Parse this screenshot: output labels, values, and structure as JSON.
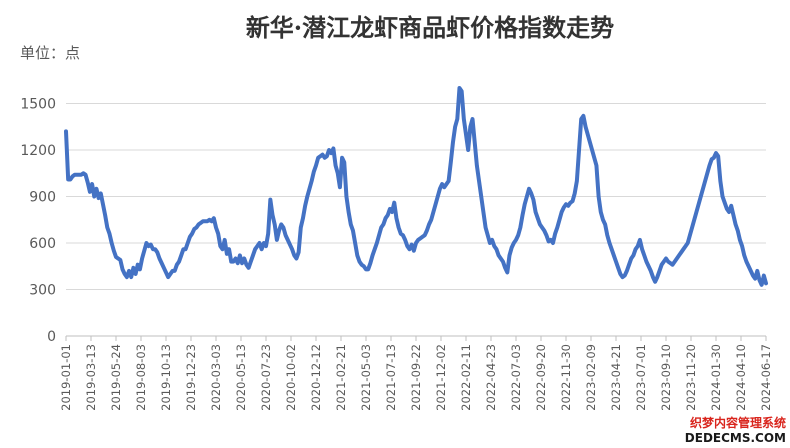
{
  "chart_data": {
    "type": "line",
    "title": "新华·潜江龙虾商品虾价格指数走势",
    "unit_label": "单位：点",
    "ylim": [
      0,
      1600
    ],
    "yticks": [
      "0",
      "300",
      "600",
      "900",
      "1200",
      "1500"
    ],
    "grid": true,
    "x_tick_labels": [
      "2019-01-01",
      "2019-03-13",
      "2019-05-24",
      "2019-08-03",
      "2019-10-13",
      "2019-12-23",
      "2020-03-03",
      "2020-05-13",
      "2020-07-23",
      "2020-10-02",
      "2020-12-12",
      "2021-02-21",
      "2021-05-03",
      "2021-07-13",
      "2021-09-22",
      "2021-12-02",
      "2022-02-11",
      "2022-04-23",
      "2022-07-03",
      "2022-09-20",
      "2022-11-30",
      "2023-02-09",
      "2023-04-21",
      "2023-07-01",
      "2023-09-10",
      "2023-11-20",
      "2024-01-30",
      "2024-04-10",
      "2024-06-17"
    ],
    "series": [
      {
        "color": "#4472c4",
        "values": [
          1320,
          1010,
          1010,
          1030,
          1040,
          1040,
          1040,
          1040,
          1050,
          1040,
          990,
          930,
          980,
          900,
          950,
          890,
          920,
          850,
          780,
          700,
          660,
          600,
          550,
          510,
          500,
          490,
          430,
          400,
          380,
          420,
          380,
          440,
          400,
          460,
          430,
          500,
          550,
          600,
          580,
          590,
          560,
          560,
          540,
          500,
          470,
          440,
          410,
          380,
          400,
          420,
          420,
          460,
          480,
          520,
          560,
          560,
          600,
          640,
          660,
          690,
          700,
          720,
          730,
          740,
          740,
          740,
          750,
          740,
          760,
          700,
          660,
          580,
          560,
          620,
          530,
          560,
          480,
          480,
          500,
          470,
          520,
          470,
          500,
          460,
          440,
          480,
          520,
          560,
          580,
          600,
          560,
          600,
          580,
          660,
          880,
          780,
          720,
          620,
          680,
          720,
          700,
          650,
          620,
          590,
          560,
          520,
          500,
          540,
          700,
          760,
          840,
          900,
          950,
          1000,
          1060,
          1100,
          1150,
          1160,
          1170,
          1150,
          1160,
          1200,
          1180,
          1210,
          1100,
          1050,
          960,
          1150,
          1120,
          900,
          800,
          720,
          680,
          600,
          520,
          480,
          460,
          450,
          430,
          430,
          470,
          520,
          560,
          600,
          650,
          700,
          720,
          760,
          780,
          820,
          800,
          860,
          760,
          700,
          660,
          650,
          620,
          580,
          560,
          590,
          550,
          600,
          620,
          630,
          640,
          650,
          680,
          720,
          750,
          800,
          850,
          900,
          950,
          980,
          960,
          980,
          1000,
          1120,
          1250,
          1350,
          1400,
          1600,
          1580,
          1400,
          1300,
          1200,
          1350,
          1400,
          1250,
          1100,
          1000,
          900,
          800,
          700,
          650,
          600,
          620,
          580,
          560,
          520,
          500,
          480,
          440,
          410,
          520,
          570,
          600,
          620,
          650,
          700,
          780,
          850,
          900,
          950,
          920,
          880,
          800,
          760,
          720,
          700,
          680,
          650,
          610,
          620,
          600,
          660,
          700,
          750,
          800,
          830,
          850,
          840,
          860,
          870,
          920,
          1000,
          1200,
          1400,
          1420,
          1350,
          1300,
          1250,
          1200,
          1150,
          1100,
          900,
          800,
          750,
          720,
          650,
          600,
          560,
          520,
          480,
          440,
          400,
          380,
          390,
          420,
          460,
          500,
          520,
          560,
          580,
          620,
          560,
          520,
          480,
          450,
          420,
          380,
          350,
          380,
          420,
          460,
          480,
          500,
          480,
          470,
          460,
          480,
          500,
          520,
          540,
          560,
          580,
          600,
          650,
          700,
          750,
          800,
          850,
          900,
          950,
          1000,
          1050,
          1100,
          1140,
          1150,
          1180,
          1160,
          1000,
          900,
          860,
          820,
          800,
          840,
          780,
          720,
          680,
          620,
          580,
          520,
          480,
          450,
          420,
          390,
          370,
          420,
          360,
          330,
          390,
          340
        ]
      }
    ]
  },
  "watermark": {
    "line1": "织梦内容管理系统",
    "line2": "DEDECMS.COM"
  }
}
